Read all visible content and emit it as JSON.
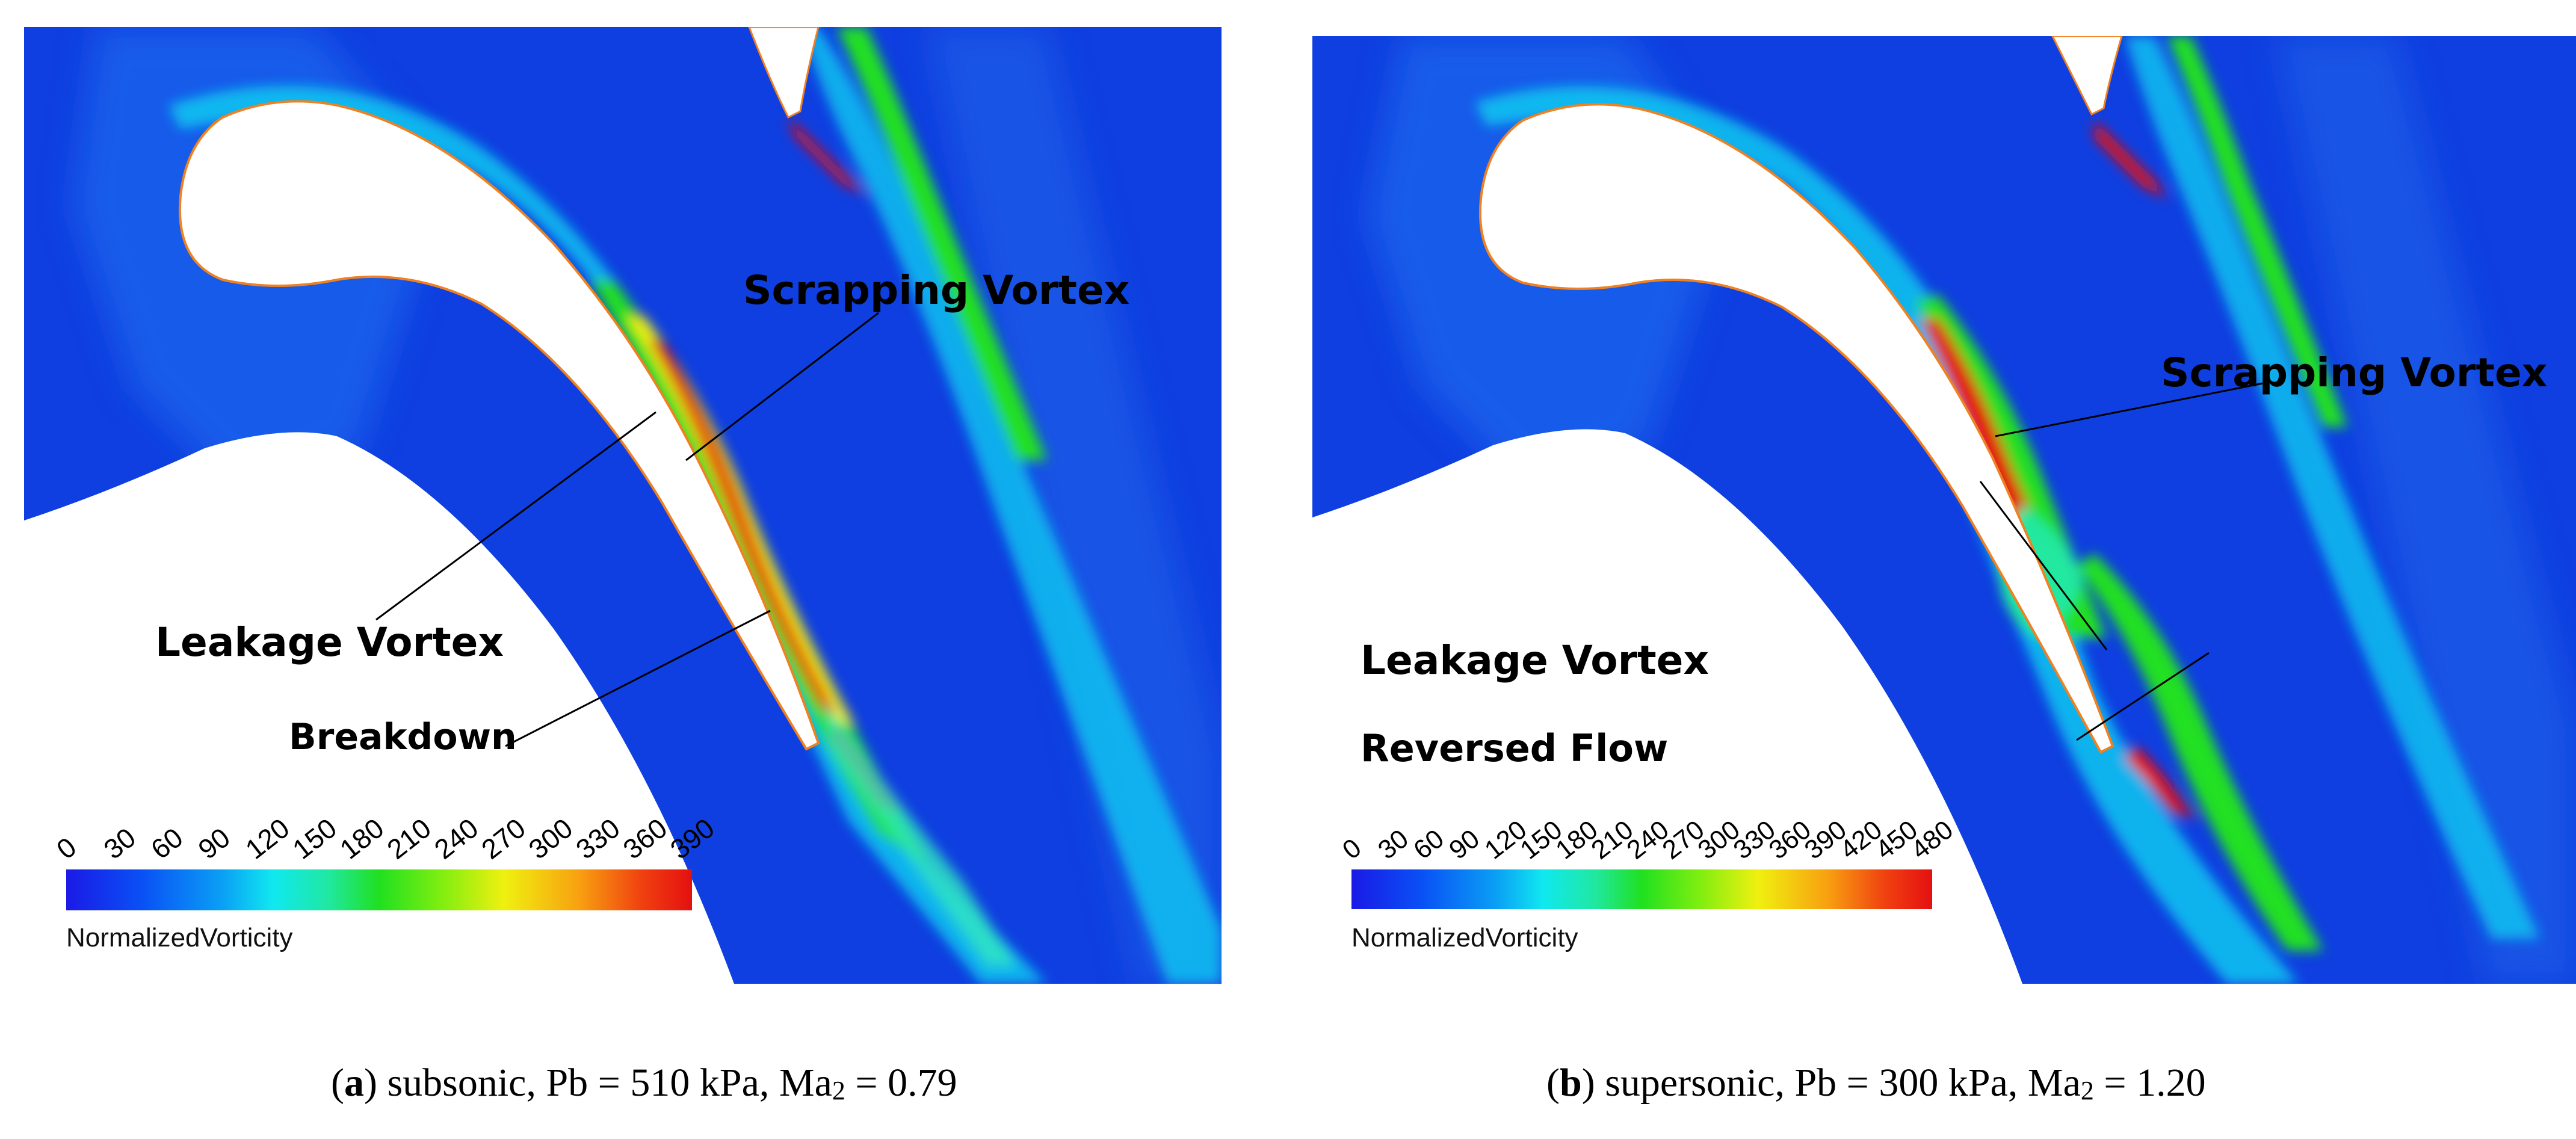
{
  "panels": [
    {
      "letter": "a",
      "caption_text": "subsonic, Pb = 510 kPa, Ma",
      "caption_sub": "2",
      "caption_tail": " = 0.79",
      "labels": {
        "scrapping": "Scrapping Vortex",
        "leakage": "Leakage Vortex",
        "third": "Breakdown"
      },
      "colorbar": {
        "title": "NormalizedVorticity",
        "ticks": [
          "0",
          "30",
          "60",
          "90",
          "120",
          "150",
          "180",
          "210",
          "240",
          "270",
          "300",
          "330",
          "360",
          "390"
        ],
        "min": 0,
        "max": 390
      }
    },
    {
      "letter": "b",
      "caption_text": "supersonic, Pb = 300 kPa, Ma",
      "caption_sub": "2",
      "caption_tail": " = 1.20",
      "labels": {
        "scrapping": "Scrapping Vortex",
        "leakage": "Leakage Vortex",
        "third": "Reversed Flow"
      },
      "colorbar": {
        "title": "NormalizedVorticity",
        "ticks": [
          "0",
          "30",
          "60",
          "90",
          "120",
          "150",
          "180",
          "210",
          "240",
          "270",
          "300",
          "330",
          "360",
          "390",
          "420",
          "450",
          "480"
        ],
        "min": 0,
        "max": 480
      }
    }
  ],
  "colors": {
    "field": "#0f3fe0",
    "cmap": [
      "#1a1ae6",
      "#0a50f5",
      "#0aa0f5",
      "#10e8f0",
      "#20e8a0",
      "#20e020",
      "#80ee10",
      "#f0f010",
      "#f8a010",
      "#f04010",
      "#e41010"
    ]
  }
}
